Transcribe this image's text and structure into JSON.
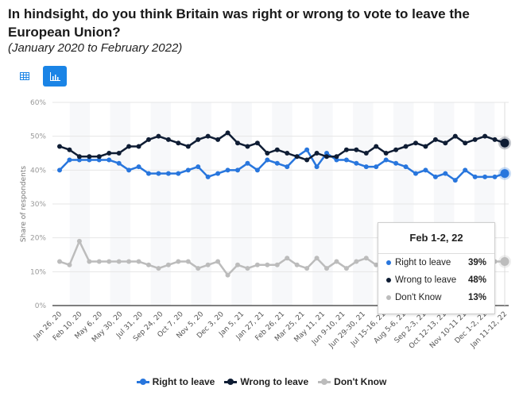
{
  "title": "In hindsight, do you think Britain was right or wrong to vote to leave the European Union?",
  "subtitle": "(January 2020 to February 2022)",
  "toolbar": {
    "table_icon": "table-grid-icon",
    "chart_icon": "bar-chart-icon"
  },
  "chart_data": {
    "type": "line",
    "title": "In hindsight, do you think Britain was right or wrong to vote to leave the European Union?",
    "ylabel": "Share of respondents",
    "xlabel": "",
    "ylim": [
      0,
      60
    ],
    "yticks": [
      "0%",
      "10%",
      "20%",
      "30%",
      "40%",
      "50%",
      "60%"
    ],
    "grid": true,
    "legend": "bottom-center",
    "xtick_labels": [
      "Jan 26, 20",
      "Feb 10, 20",
      "May 6, 20",
      "May 30, 20",
      "Jul 31, 20",
      "Sep 24, 20",
      "Oct 7, 20",
      "Nov 5, 20",
      "Dec 3, 20",
      "Jan 5, 21",
      "Jan 27, 21",
      "Feb 26, 21",
      "Mar 25, 21",
      "May 11, 21",
      "Jun 9-10, 21",
      "Jun 29-30, 21",
      "Jul 15-16, 21",
      "Aug 5-6, 21",
      "Sep 2-3, 21",
      "Oct 12-13, 21",
      "Nov 10-11 21",
      "Dec 1-2, 21",
      "Jan 11-12, 22"
    ],
    "n_points": 46,
    "series": [
      {
        "name": "Right to leave",
        "color": "#2876dd",
        "values": [
          40,
          43,
          43,
          43,
          43,
          43,
          42,
          40,
          41,
          39,
          39,
          39,
          39,
          40,
          41,
          38,
          39,
          40,
          40,
          42,
          40,
          43,
          42,
          41,
          44,
          46,
          41,
          45,
          43,
          43,
          42,
          41,
          41,
          43,
          42,
          41,
          39,
          40,
          38,
          39,
          37,
          40,
          38,
          38,
          38,
          39
        ]
      },
      {
        "name": "Wrong to leave",
        "color": "#0f1d34",
        "values": [
          47,
          46,
          44,
          44,
          44,
          45,
          45,
          47,
          47,
          49,
          50,
          49,
          48,
          47,
          49,
          50,
          49,
          51,
          48,
          47,
          48,
          45,
          46,
          45,
          44,
          43,
          45,
          44,
          44,
          46,
          46,
          45,
          47,
          45,
          46,
          47,
          48,
          47,
          49,
          48,
          50,
          48,
          49,
          50,
          49,
          48
        ]
      },
      {
        "name": "Don't Know",
        "color": "#bcbcbc",
        "values": [
          13,
          12,
          19,
          13,
          13,
          13,
          13,
          13,
          13,
          12,
          11,
          12,
          13,
          13,
          11,
          12,
          13,
          9,
          12,
          11,
          12,
          12,
          12,
          14,
          12,
          11,
          14,
          11,
          13,
          11,
          13,
          14,
          12,
          13,
          13,
          13,
          13,
          13,
          13,
          13,
          13,
          13,
          13,
          13,
          13,
          13
        ]
      }
    ],
    "tooltip": {
      "title": "Feb 1-2, 22",
      "rows": [
        {
          "label": "Right to leave",
          "value": "39%",
          "color": "#2876dd"
        },
        {
          "label": "Wrong to leave",
          "value": "48%",
          "color": "#0f1d34"
        },
        {
          "label": "Don't Know",
          "value": "13%",
          "color": "#bcbcbc"
        }
      ]
    }
  }
}
